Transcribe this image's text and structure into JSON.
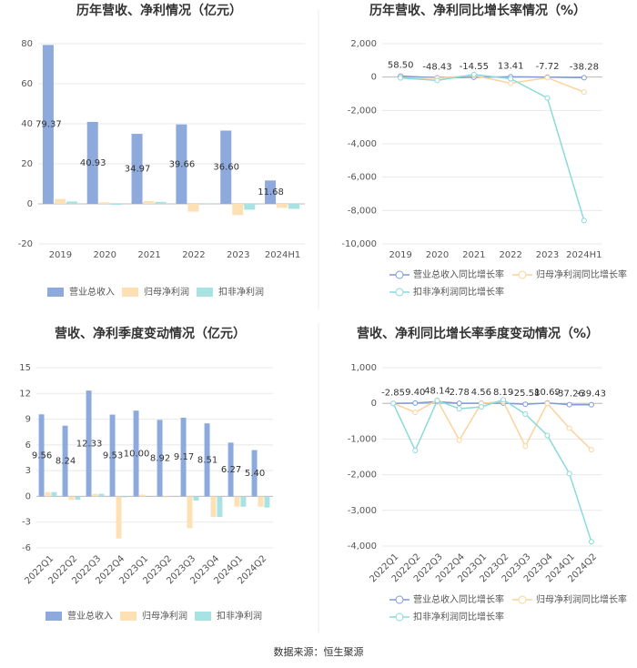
{
  "chart_data": [
    {
      "type": "bar",
      "title": "历年营收、净利情况（亿元）",
      "categories": [
        "2019",
        "2020",
        "2021",
        "2022",
        "2023",
        "2024H1"
      ],
      "series": [
        {
          "name": "营业总收入",
          "color": "#8eaadc",
          "values": [
            79.37,
            40.93,
            34.97,
            39.66,
            36.6,
            11.68
          ],
          "value_labels": [
            "79.37",
            "40.93",
            "34.97",
            "39.66",
            "36.60",
            "11.68"
          ]
        },
        {
          "name": "归母净利润",
          "color": "#fde0b4",
          "values": [
            2.4,
            0.8,
            1.4,
            -3.9,
            -5.6,
            -2.0
          ]
        },
        {
          "name": "扣非净利润",
          "color": "#a8e2e2",
          "values": [
            1.2,
            -0.5,
            1.0,
            0.3,
            -2.9,
            -2.5
          ]
        }
      ],
      "ylim": [
        -20,
        80
      ],
      "yticks": [
        -20,
        0,
        20,
        40,
        60,
        80
      ],
      "grid": true
    },
    {
      "type": "line",
      "title": "历年营收、净利同比增长率情况（%）",
      "categories": [
        "2019",
        "2020",
        "2021",
        "2022",
        "2023",
        "2024H1"
      ],
      "series": [
        {
          "name": "营业总收入同比增长率",
          "color": "#7f9bd3",
          "values": [
            58.5,
            -48.43,
            -14.55,
            13.41,
            -7.72,
            -38.28
          ],
          "value_labels": [
            "58.50",
            "-48.43",
            "-14.55",
            "13.41",
            "-7.72",
            "-38.28"
          ]
        },
        {
          "name": "归母净利润同比增长率",
          "color": "#fbd39b",
          "values": [
            -50,
            -70,
            100,
            -370,
            -40,
            -900
          ]
        },
        {
          "name": "扣非净利润同比增长率",
          "color": "#8adada",
          "values": [
            -50,
            -200,
            150,
            -100,
            -1250,
            -8600
          ]
        }
      ],
      "ylim": [
        -10000,
        2000
      ],
      "yticks": [
        {
          "value": -10000,
          "label": "-10,000"
        },
        {
          "value": -8000,
          "label": "-8,000"
        },
        {
          "value": -6000,
          "label": "-6,000"
        },
        {
          "value": -4000,
          "label": "-4,000"
        },
        {
          "value": -2000,
          "label": "-2,000"
        },
        0,
        {
          "value": 2000,
          "label": "2,000"
        }
      ],
      "grid": true
    },
    {
      "type": "bar",
      "title": "营收、净利季度变动情况（亿元）",
      "categories": [
        "2022Q1",
        "2022Q2",
        "2022Q3",
        "2022Q4",
        "2023Q1",
        "2023Q2",
        "2023Q3",
        "2023Q4",
        "2024Q1",
        "2024Q2"
      ],
      "series": [
        {
          "name": "营业总收入",
          "color": "#8eaadc",
          "values": [
            9.56,
            8.24,
            12.33,
            9.53,
            10.0,
            8.92,
            9.17,
            8.51,
            6.27,
            5.4
          ],
          "value_labels": [
            "9.56",
            "8.24",
            "12.33",
            "9.53",
            "10.00",
            "8.92",
            "9.17",
            "8.51",
            "6.27",
            "5.40"
          ]
        },
        {
          "name": "归母净利润",
          "color": "#fde0b4",
          "values": [
            0.5,
            -0.4,
            0.3,
            -4.9,
            0.2,
            -0.1,
            -3.7,
            -2.4,
            -1.2,
            -1.2
          ]
        },
        {
          "name": "扣非净利润",
          "color": "#a8e2e2",
          "values": [
            0.5,
            -0.4,
            0.3,
            -0.1,
            0.0,
            0.0,
            -0.5,
            -2.4,
            -1.2,
            -1.3
          ]
        }
      ],
      "ylim": [
        -6,
        15
      ],
      "yticks": [
        -6,
        -3,
        0,
        3,
        6,
        9,
        12,
        15
      ],
      "grid": true
    },
    {
      "type": "line",
      "title": "营收、净利同比增长率季度变动情况（%）",
      "categories": [
        "2022Q1",
        "2022Q2",
        "2022Q3",
        "2022Q4",
        "2023Q1",
        "2023Q2",
        "2023Q3",
        "2023Q4",
        "2024Q1",
        "2024Q2"
      ],
      "series": [
        {
          "name": "营业总收入同比增长率",
          "color": "#7f9bd3",
          "values": [
            -2.85,
            9.4,
            48.14,
            2.78,
            4.56,
            8.19,
            -25.58,
            10.69,
            -37.26,
            -39.43
          ],
          "value_labels": [
            "-2.85",
            "9.40",
            "48.14",
            "2.78",
            "4.56",
            "8.19",
            "-25.58",
            "10.69",
            "-37.26",
            "-39.43"
          ]
        },
        {
          "name": "归母净利润同比增长率",
          "color": "#fbd39b",
          "values": [
            0,
            -250,
            90,
            -1030,
            0,
            50,
            -1200,
            0,
            -700,
            -1300
          ]
        },
        {
          "name": "扣非净利润同比增长率",
          "color": "#8adada",
          "values": [
            0,
            -1320,
            80,
            -150,
            -100,
            100,
            -300,
            -900,
            -1970,
            -3880
          ]
        }
      ],
      "ylim": [
        -4000,
        1000
      ],
      "yticks": [
        {
          "value": -4000,
          "label": "-4,000"
        },
        {
          "value": -3000,
          "label": "-3,000"
        },
        {
          "value": -2000,
          "label": "-2,000"
        },
        {
          "value": -1000,
          "label": "-1,000"
        },
        0,
        {
          "value": 1000,
          "label": "1,000"
        }
      ],
      "grid": true
    }
  ],
  "source": "数据来源：恒生聚源"
}
